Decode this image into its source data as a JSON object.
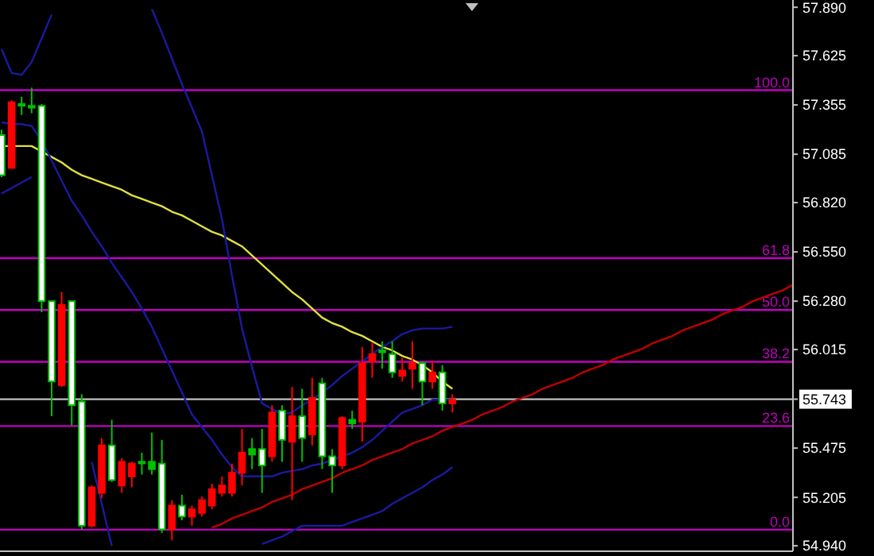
{
  "chart_data": {
    "type": "candlestick",
    "categories": [
      null,
      null,
      null,
      null,
      null,
      null,
      null,
      null,
      null,
      null,
      null,
      null,
      null,
      null,
      null,
      null,
      null,
      null,
      null,
      null,
      null,
      null,
      null,
      null,
      null,
      null,
      null,
      null,
      null,
      null,
      null,
      null,
      null,
      null,
      null,
      null,
      null,
      null,
      null,
      null,
      null,
      null,
      null,
      null,
      null,
      null,
      null,
      null,
      null,
      null,
      null,
      null,
      null,
      null,
      null,
      null,
      null,
      null,
      null,
      null,
      null,
      null,
      null,
      null,
      null,
      null,
      null,
      null,
      null,
      null,
      null,
      null,
      null,
      null,
      null,
      null,
      null,
      null,
      null,
      null
    ],
    "ohlc": [
      [
        57.19,
        57.22,
        56.96,
        56.97
      ],
      [
        57.01,
        57.38,
        57.01,
        57.37
      ],
      [
        57.36,
        57.4,
        57.3,
        57.36
      ],
      [
        57.35,
        57.45,
        57.31,
        57.34
      ],
      [
        57.35,
        57.36,
        56.22,
        56.28
      ],
      [
        56.28,
        56.28,
        55.65,
        55.84
      ],
      [
        55.82,
        56.33,
        55.81,
        56.26
      ],
      [
        56.28,
        56.28,
        55.6,
        55.71
      ],
      [
        55.73,
        55.77,
        55.03,
        55.05
      ],
      [
        55.05,
        55.27,
        55.04,
        55.26
      ],
      [
        55.23,
        55.53,
        55.2,
        55.49
      ],
      [
        55.49,
        55.63,
        55.29,
        55.3
      ],
      [
        55.27,
        55.42,
        55.23,
        55.4
      ],
      [
        55.32,
        55.4,
        55.26,
        55.39
      ],
      [
        55.4,
        55.45,
        55.33,
        55.4
      ],
      [
        55.4,
        55.56,
        55.33,
        55.36
      ],
      [
        55.39,
        55.52,
        55.01,
        55.03
      ],
      [
        55.03,
        55.19,
        54.97,
        55.16
      ],
      [
        55.16,
        55.22,
        55.08,
        55.1
      ],
      [
        55.1,
        55.16,
        55.05,
        55.14
      ],
      [
        55.12,
        55.21,
        55.1,
        55.19
      ],
      [
        55.16,
        55.28,
        55.14,
        55.25
      ],
      [
        55.23,
        55.32,
        55.21,
        55.27
      ],
      [
        55.23,
        55.39,
        55.21,
        55.34
      ],
      [
        55.34,
        55.58,
        55.27,
        55.45
      ],
      [
        55.44,
        55.53,
        55.36,
        55.47
      ],
      [
        55.47,
        55.58,
        55.23,
        55.38
      ],
      [
        55.43,
        55.71,
        55.4,
        55.67
      ],
      [
        55.68,
        55.71,
        55.4,
        55.52
      ],
      [
        55.51,
        55.81,
        55.19,
        55.65
      ],
      [
        55.65,
        55.8,
        55.4,
        55.53
      ],
      [
        55.55,
        55.86,
        55.49,
        55.75
      ],
      [
        55.83,
        55.86,
        55.36,
        55.43
      ],
      [
        55.43,
        55.47,
        55.23,
        55.38
      ],
      [
        55.38,
        55.65,
        55.36,
        55.64
      ],
      [
        55.61,
        55.68,
        55.58,
        55.63
      ],
      [
        55.62,
        56.03,
        55.51,
        55.94
      ],
      [
        55.95,
        56.05,
        55.86,
        55.99
      ],
      [
        56.0,
        56.06,
        55.91,
        56.01
      ],
      [
        55.99,
        56.06,
        55.86,
        55.89
      ],
      [
        55.87,
        55.97,
        55.84,
        55.9
      ],
      [
        55.91,
        56.06,
        55.8,
        55.94
      ],
      [
        55.94,
        55.95,
        55.71,
        55.84
      ],
      [
        55.84,
        55.95,
        55.8,
        55.89
      ],
      [
        55.89,
        55.93,
        55.68,
        55.72
      ],
      [
        55.72,
        55.77,
        55.67,
        55.74
      ],
      null,
      null,
      null,
      null,
      null,
      null,
      null,
      null,
      null,
      null,
      null,
      null,
      null,
      null,
      null,
      null,
      null,
      null,
      null,
      null,
      null,
      null,
      null,
      null,
      null,
      null,
      null,
      null,
      null,
      null,
      null,
      null,
      null,
      null
    ],
    "colors": [
      "#ffffff",
      "#ff0000",
      "#00c000",
      "#00c000",
      "#ffffff",
      "#ffffff",
      "#ff0000",
      "#ffffff",
      "#ffffff",
      "#ff0000",
      "#ff0000",
      "#ffffff",
      "#ff0000",
      "#ff0000",
      "#00c000",
      "#00c000",
      "#ffffff",
      "#ff0000",
      "#ffffff",
      "#ff0000",
      "#ff0000",
      "#ff0000",
      "#ff0000",
      "#ff0000",
      "#ff0000",
      "#00c000",
      "#ffffff",
      "#ff0000",
      "#ffffff",
      "#ff0000",
      "#ffffff",
      "#ff0000",
      "#ffffff",
      "#ffffff",
      "#ff0000",
      "#00c000",
      "#ff0000",
      "#ff0000",
      "#00c000",
      "#ffffff",
      "#ff0000",
      "#ff0000",
      "#ffffff",
      "#ff0000",
      "#ffffff",
      "#ff0000",
      null,
      null,
      null,
      null,
      null,
      null,
      null,
      null,
      null,
      null,
      null,
      null,
      null,
      null,
      null,
      null,
      null,
      null,
      null,
      null,
      null,
      null,
      null,
      null,
      null,
      null,
      null,
      null,
      null,
      null,
      null,
      null,
      null,
      null
    ],
    "series": [
      {
        "type": "line",
        "color": "#e0e040",
        "values": [
          57.13,
          57.13,
          57.13,
          57.13,
          57.1,
          57.07,
          57.04,
          57.0,
          56.97,
          56.95,
          56.93,
          56.91,
          56.89,
          56.86,
          56.84,
          56.82,
          56.8,
          56.77,
          56.75,
          56.72,
          56.69,
          56.66,
          56.64,
          56.61,
          56.58,
          56.53,
          56.48,
          56.43,
          56.38,
          56.33,
          56.29,
          56.24,
          56.19,
          56.16,
          56.14,
          56.11,
          56.09,
          56.06,
          56.03,
          56.01,
          55.98,
          55.96,
          55.93,
          55.89,
          55.84,
          55.8,
          null,
          null,
          null,
          null,
          null,
          null,
          null,
          null,
          null,
          null,
          null,
          null,
          null,
          null,
          null,
          null,
          null,
          null,
          null,
          null,
          null,
          null,
          null,
          null,
          null,
          null,
          null,
          null,
          null,
          null,
          null,
          null,
          null,
          null
        ]
      },
      {
        "type": "line",
        "color": "#1a1aa0",
        "values": [
          57.66,
          57.53,
          57.52,
          57.59,
          57.72,
          57.85,
          null,
          null,
          null,
          null,
          null,
          null,
          null,
          null,
          null,
          57.88,
          57.75,
          57.61,
          57.47,
          57.34,
          57.21,
          56.97,
          56.73,
          56.42,
          56.13,
          55.92,
          55.72,
          55.69,
          55.66,
          55.67,
          55.71,
          55.74,
          55.78,
          55.82,
          55.87,
          55.91,
          55.95,
          55.99,
          56.03,
          56.06,
          56.1,
          56.12,
          56.13,
          56.13,
          56.13,
          56.14,
          null,
          null,
          null,
          null,
          null,
          null,
          null,
          null,
          null,
          null,
          null,
          null,
          null,
          null,
          null,
          null,
          null,
          null,
          null,
          null,
          null,
          null,
          null,
          null,
          null,
          null,
          null,
          null,
          null,
          null,
          null,
          null,
          null,
          null
        ]
      },
      {
        "type": "line",
        "color": "#1a1aa0",
        "values": [
          57.26,
          57.25,
          57.25,
          57.24,
          57.16,
          57.05,
          56.94,
          56.83,
          56.75,
          56.66,
          56.58,
          56.49,
          56.41,
          56.33,
          56.24,
          56.14,
          56.02,
          55.9,
          55.78,
          55.66,
          55.59,
          55.52,
          55.44,
          55.37,
          55.32,
          55.32,
          55.32,
          55.32,
          55.34,
          55.35,
          55.36,
          55.38,
          55.39,
          55.41,
          55.43,
          55.45,
          55.48,
          55.52,
          55.57,
          55.62,
          55.67,
          55.69,
          55.71,
          55.74,
          55.74,
          55.74,
          null,
          null,
          null,
          null,
          null,
          null,
          null,
          null,
          null,
          null,
          null,
          null,
          null,
          null,
          null,
          null,
          null,
          null,
          null,
          null,
          null,
          null,
          null,
          null,
          null,
          null,
          null,
          null,
          null,
          null,
          null,
          null,
          null,
          null
        ]
      },
      {
        "type": "line",
        "color": "#1a1aa0",
        "values": [
          56.87,
          56.9,
          56.93,
          56.96,
          null,
          null,
          null,
          null,
          null,
          55.4,
          55.17,
          54.94,
          null,
          null,
          null,
          null,
          null,
          null,
          null,
          null,
          null,
          null,
          null,
          null,
          null,
          null,
          54.95,
          54.97,
          54.99,
          55.02,
          55.05,
          55.05,
          55.05,
          55.05,
          55.05,
          55.07,
          55.09,
          55.11,
          55.13,
          55.17,
          55.2,
          55.23,
          55.26,
          55.3,
          55.33,
          55.37,
          null,
          null,
          null,
          null,
          null,
          null,
          null,
          null,
          null,
          null,
          null,
          null,
          null,
          null,
          null,
          null,
          null,
          null,
          null,
          null,
          null,
          null,
          null,
          null,
          null,
          null,
          null,
          null,
          null,
          null,
          null,
          null,
          null,
          null
        ]
      },
      {
        "type": "line",
        "color": "#c00000",
        "values": [
          null,
          null,
          null,
          null,
          null,
          null,
          null,
          null,
          null,
          null,
          null,
          null,
          null,
          null,
          null,
          null,
          null,
          null,
          null,
          null,
          null,
          55.04,
          55.06,
          55.09,
          55.11,
          55.13,
          55.15,
          55.18,
          55.2,
          55.22,
          55.25,
          55.27,
          55.29,
          55.31,
          55.34,
          55.36,
          55.38,
          55.41,
          55.43,
          55.45,
          55.47,
          55.5,
          55.52,
          55.54,
          55.57,
          55.59,
          55.61,
          55.63,
          55.66,
          55.68,
          55.7,
          55.73,
          55.75,
          55.77,
          55.8,
          55.82,
          55.84,
          55.86,
          55.89,
          55.91,
          55.93,
          55.96,
          55.98,
          56.0,
          56.02,
          56.05,
          56.07,
          56.09,
          56.12,
          56.14,
          56.16,
          56.18,
          56.21,
          56.23,
          56.25,
          56.28,
          56.3,
          56.32,
          56.34,
          56.37
        ]
      }
    ],
    "ylim": [
      54.91,
      57.93
    ],
    "yticks": [
      {
        "value": 54.94,
        "label": "54.940"
      },
      {
        "value": 55.205,
        "label": "55.205"
      },
      {
        "value": 55.475,
        "label": "55.475"
      },
      {
        "value": 55.743,
        "label": "55.743"
      },
      {
        "value": 56.015,
        "label": "56.015"
      },
      {
        "value": 56.28,
        "label": "56.280"
      },
      {
        "value": 56.55,
        "label": "56.550"
      },
      {
        "value": 56.82,
        "label": "56.820"
      },
      {
        "value": 57.085,
        "label": "57.085"
      },
      {
        "value": 57.355,
        "label": "57.355"
      },
      {
        "value": 57.625,
        "label": "57.625"
      },
      {
        "value": 57.89,
        "label": "57.890"
      }
    ],
    "tick_labels": "y",
    "ref_lines": [
      {
        "axis": "y",
        "value": 57.436,
        "color": "#c000c0"
      },
      {
        "axis": "y",
        "value": 56.516,
        "color": "#c000c0"
      },
      {
        "axis": "y",
        "value": 56.232,
        "color": "#c000c0"
      },
      {
        "axis": "y",
        "value": 55.948,
        "color": "#c000c0"
      },
      {
        "axis": "y",
        "value": 55.596,
        "color": "#c000c0"
      },
      {
        "axis": "y",
        "value": 55.028,
        "color": "#c000c0"
      },
      {
        "axis": "y",
        "value": 55.743,
        "color": "#c0c0c0"
      }
    ],
    "annotations": [
      {
        "text": "100.0",
        "y": 57.436
      },
      {
        "text": "61.8",
        "y": 56.516
      },
      {
        "text": "50.0",
        "y": 56.232
      },
      {
        "text": "38.2",
        "y": 55.948
      },
      {
        "text": "23.6",
        "y": 55.596
      },
      {
        "text": "0.0",
        "y": 55.028
      }
    ]
  }
}
